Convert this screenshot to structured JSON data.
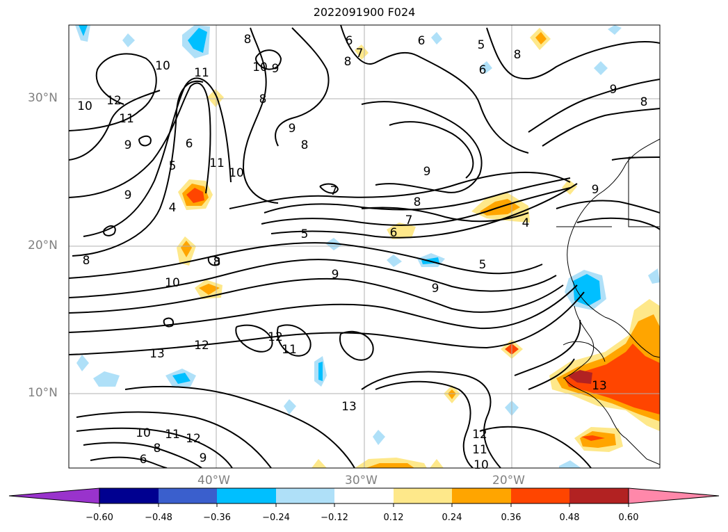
{
  "title": "2022091900 F024",
  "map": {
    "lat_labels": [
      "30°N",
      "20°N",
      "10°N"
    ],
    "lon_labels": [
      "40°W",
      "30°W",
      "20°W"
    ],
    "contour_labels": [
      "8",
      "6",
      "6",
      "7",
      "8",
      "5",
      "6",
      "8",
      "10",
      "11",
      "12",
      "10",
      "11",
      "9",
      "9",
      "6",
      "5",
      "4",
      "11",
      "10",
      "9",
      "8",
      "10",
      "9",
      "8",
      "7",
      "9",
      "8",
      "5",
      "7",
      "6",
      "5",
      "8",
      "9",
      "10",
      "8",
      "9",
      "12",
      "13",
      "12",
      "11",
      "13",
      "12",
      "11",
      "10",
      "8",
      "9",
      "6",
      "10",
      "11",
      "12",
      "9",
      "8",
      "4",
      "9",
      "13"
    ]
  },
  "colorbar": {
    "ticks": [
      "−0.60",
      "−0.48",
      "−0.36",
      "−0.24",
      "−0.12",
      "0.12",
      "0.24",
      "0.36",
      "0.48",
      "0.60"
    ],
    "colors": [
      "#9933cc",
      "#000090",
      "#3a5fcd",
      "#00bfff",
      "#afe0f8",
      "#ffffff",
      "#fee88a",
      "#ffa500",
      "#ff4500",
      "#b22222",
      "#ff88aa",
      "#ff88aa"
    ]
  }
}
